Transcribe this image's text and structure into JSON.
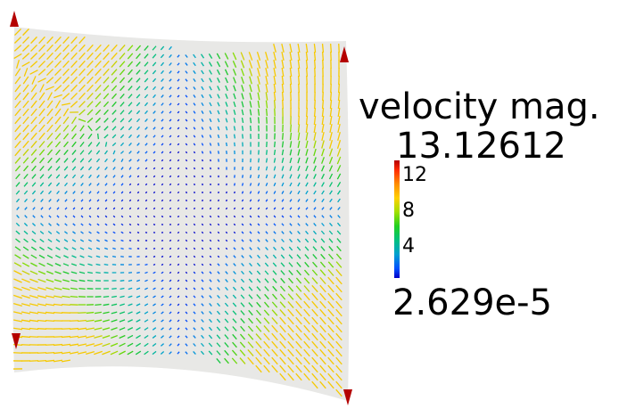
{
  "legend": {
    "title": "velocity mag.",
    "max_label": "13.12612",
    "min_label": "2.629e-5",
    "ticks": [
      "12",
      "8",
      "4"
    ],
    "range": [
      2.629e-05,
      13.12612
    ]
  },
  "colors": {
    "background": "#ffffff",
    "domain_fill": "#e8e8e6",
    "high": "#b40000",
    "mid": "#20d020",
    "low": "#0000c8"
  }
}
